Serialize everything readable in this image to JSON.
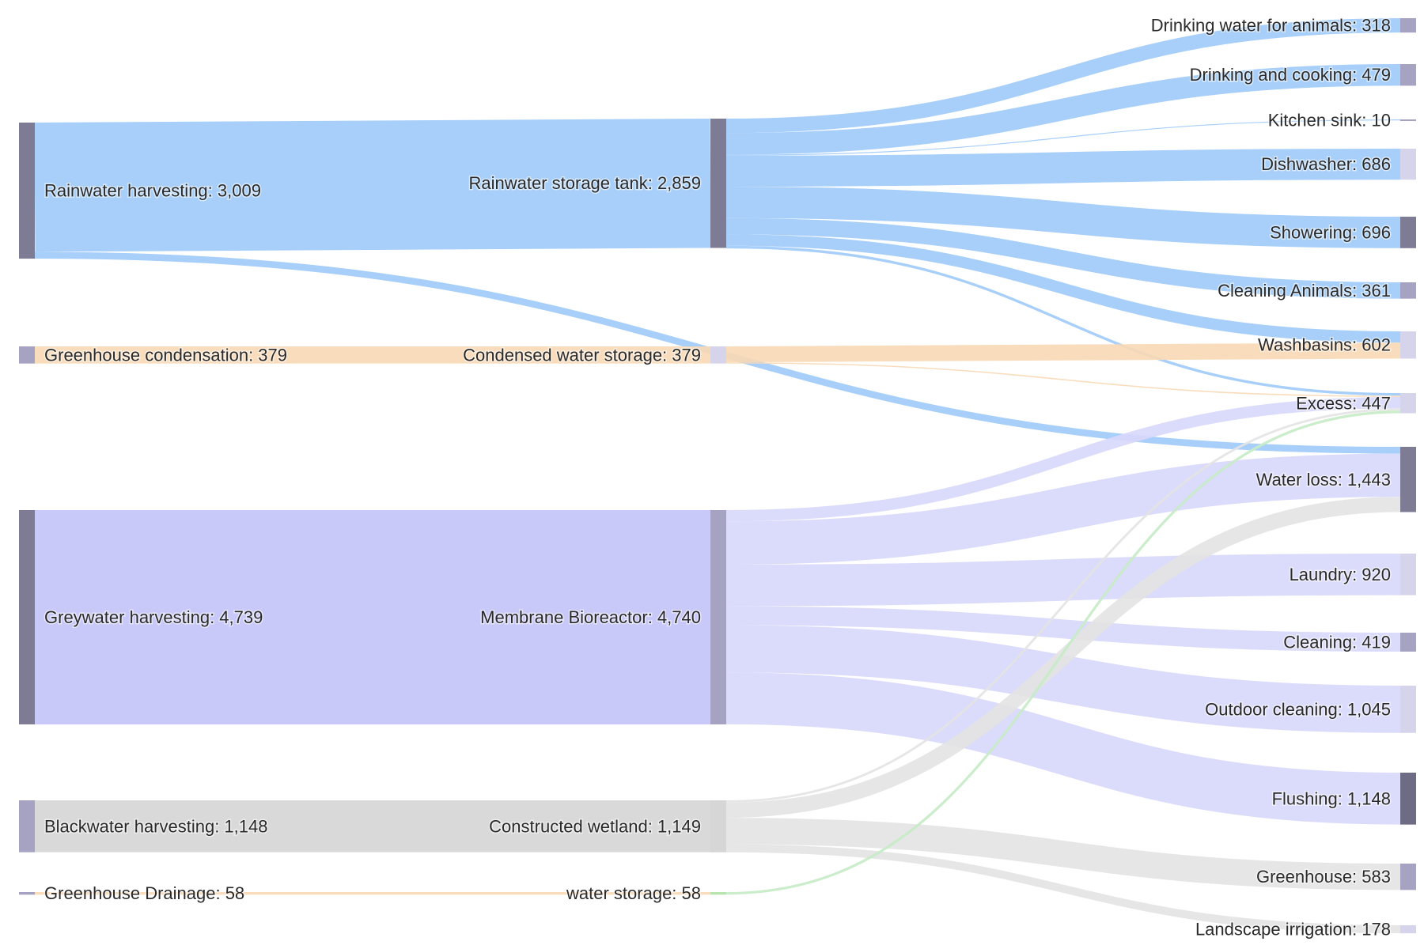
{
  "chart_data": {
    "type": "sankey",
    "title": "",
    "colors": {
      "rain": "#a0cbf8",
      "condensation": "#f8d9b5",
      "grey": "#c3c3f8",
      "black": "#d6d6d6",
      "drainage": "#f8d9b5",
      "storage": "#c8ecc8",
      "bioreactor_out": "#d8d8fb",
      "wetland_out": "#e4e4e4",
      "node_dark": "#7e7b94",
      "node_mid": "#a6a3c2",
      "node_light": "#d6d4ea"
    },
    "nodes": [
      {
        "id": "rain_harv",
        "label": "Rainwater harvesting: 3,009",
        "value": 3009,
        "column": 0,
        "color": "#7e7b94"
      },
      {
        "id": "cond_harv",
        "label": "Greenhouse condensation: 379",
        "value": 379,
        "column": 0,
        "color": "#a6a3c2"
      },
      {
        "id": "grey_harv",
        "label": "Greywater harvesting: 4,739",
        "value": 4739,
        "column": 0,
        "color": "#7e7b94"
      },
      {
        "id": "black_harv",
        "label": "Blackwater harvesting: 1,148",
        "value": 1148,
        "column": 0,
        "color": "#a6a3c2"
      },
      {
        "id": "drain_harv",
        "label": "Greenhouse Drainage: 58",
        "value": 58,
        "column": 0,
        "color": "#a6a3c2"
      },
      {
        "id": "rain_tank",
        "label": "Rainwater storage tank: 2,859",
        "value": 2859,
        "column": 1,
        "color": "#7e7b94"
      },
      {
        "id": "cond_store",
        "label": "Condensed water storage: 379",
        "value": 379,
        "column": 1,
        "color": "#d6d4ea"
      },
      {
        "id": "mbr",
        "label": "Membrane Bioreactor: 4,740",
        "value": 4740,
        "column": 1,
        "color": "#a6a3c2"
      },
      {
        "id": "wetland",
        "label": "Constructed wetland: 1,149",
        "value": 1149,
        "column": 1,
        "color": "#d6d6d6"
      },
      {
        "id": "wstore",
        "label": "water storage: 58",
        "value": 58,
        "column": 1,
        "color": "#b8e4b0"
      },
      {
        "id": "animals_drink",
        "label": "Drinking water for animals: 318",
        "value": 318,
        "column": 2,
        "color": "#a6a3c2"
      },
      {
        "id": "drink_cook",
        "label": "Drinking and cooking: 479",
        "value": 479,
        "column": 2,
        "color": "#a6a3c2"
      },
      {
        "id": "kitchen",
        "label": "Kitchen sink: 10",
        "value": 10,
        "column": 2,
        "color": "#a6a3c2"
      },
      {
        "id": "dishwasher",
        "label": "Dishwasher: 686",
        "value": 686,
        "column": 2,
        "color": "#d6d4ea"
      },
      {
        "id": "shower",
        "label": "Showering: 696",
        "value": 696,
        "column": 2,
        "color": "#7e7b94"
      },
      {
        "id": "clean_animals",
        "label": "Cleaning Animals: 361",
        "value": 361,
        "column": 2,
        "color": "#a6a3c2"
      },
      {
        "id": "washbasins",
        "label": "Washbasins: 602",
        "value": 602,
        "column": 2,
        "color": "#d6d4ea"
      },
      {
        "id": "excess",
        "label": "Excess: 447",
        "value": 447,
        "column": 2,
        "color": "#d6d4ea"
      },
      {
        "id": "loss",
        "label": "Water loss: 1,443",
        "value": 1443,
        "column": 2,
        "color": "#7e7b94"
      },
      {
        "id": "laundry",
        "label": "Laundry: 920",
        "value": 920,
        "column": 2,
        "color": "#d6d4ea"
      },
      {
        "id": "cleaning",
        "label": "Cleaning: 419",
        "value": 419,
        "column": 2,
        "color": "#a6a3c2"
      },
      {
        "id": "outdoor",
        "label": "Outdoor cleaning: 1,045",
        "value": 1045,
        "column": 2,
        "color": "#d6d4ea"
      },
      {
        "id": "flushing",
        "label": "Flushing: 1,148",
        "value": 1148,
        "column": 2,
        "color": "#6e6b84"
      },
      {
        "id": "greenhouse",
        "label": "Greenhouse: 583",
        "value": 583,
        "column": 2,
        "color": "#a6a3c2"
      },
      {
        "id": "landscape",
        "label": "Landscape irrigation: 178",
        "value": 178,
        "column": 2,
        "color": "#d6d4ea"
      }
    ],
    "links": [
      {
        "source": "rain_harv",
        "target": "rain_tank",
        "value": 2859,
        "color": "#a0cbf8"
      },
      {
        "source": "rain_harv",
        "target": "loss",
        "value": 150,
        "color": "#a0cbf8"
      },
      {
        "source": "cond_harv",
        "target": "cond_store",
        "value": 379,
        "color": "#f8d9b5"
      },
      {
        "source": "grey_harv",
        "target": "mbr",
        "value": 4739,
        "color": "#c3c3f8"
      },
      {
        "source": "black_harv",
        "target": "wetland",
        "value": 1148,
        "color": "#d6d6d6"
      },
      {
        "source": "drain_harv",
        "target": "wstore",
        "value": 58,
        "color": "#f8d9b5"
      },
      {
        "source": "rain_tank",
        "target": "animals_drink",
        "value": 318,
        "color": "#a0cbf8"
      },
      {
        "source": "rain_tank",
        "target": "drink_cook",
        "value": 479,
        "color": "#a0cbf8"
      },
      {
        "source": "rain_tank",
        "target": "kitchen",
        "value": 10,
        "color": "#a0cbf8"
      },
      {
        "source": "rain_tank",
        "target": "dishwasher",
        "value": 686,
        "color": "#a0cbf8"
      },
      {
        "source": "rain_tank",
        "target": "shower",
        "value": 696,
        "color": "#a0cbf8"
      },
      {
        "source": "rain_tank",
        "target": "clean_animals",
        "value": 361,
        "color": "#a0cbf8"
      },
      {
        "source": "rain_tank",
        "target": "washbasins",
        "value": 250,
        "color": "#a0cbf8"
      },
      {
        "source": "rain_tank",
        "target": "excess",
        "value": 59,
        "color": "#a0cbf8"
      },
      {
        "source": "cond_store",
        "target": "washbasins",
        "value": 352,
        "color": "#f8d9b5"
      },
      {
        "source": "cond_store",
        "target": "excess",
        "value": 27,
        "color": "#f8d9b5"
      },
      {
        "source": "mbr",
        "target": "excess",
        "value": 250,
        "color": "#d8d8fb"
      },
      {
        "source": "mbr",
        "target": "loss",
        "value": 956,
        "color": "#d8d8fb"
      },
      {
        "source": "mbr",
        "target": "laundry",
        "value": 920,
        "color": "#d8d8fb"
      },
      {
        "source": "mbr",
        "target": "cleaning",
        "value": 419,
        "color": "#d8d8fb"
      },
      {
        "source": "mbr",
        "target": "outdoor",
        "value": 1045,
        "color": "#d8d8fb"
      },
      {
        "source": "mbr",
        "target": "flushing",
        "value": 1148,
        "color": "#d8d8fb"
      },
      {
        "source": "wetland",
        "target": "excess",
        "value": 51,
        "color": "#e4e4e4"
      },
      {
        "source": "wetland",
        "target": "loss",
        "value": 337,
        "color": "#e4e4e4"
      },
      {
        "source": "wetland",
        "target": "greenhouse",
        "value": 583,
        "color": "#e4e4e4"
      },
      {
        "source": "wetland",
        "target": "landscape",
        "value": 178,
        "color": "#e4e4e4"
      },
      {
        "source": "wstore",
        "target": "excess",
        "value": 58,
        "color": "#c8ecc8"
      }
    ]
  }
}
